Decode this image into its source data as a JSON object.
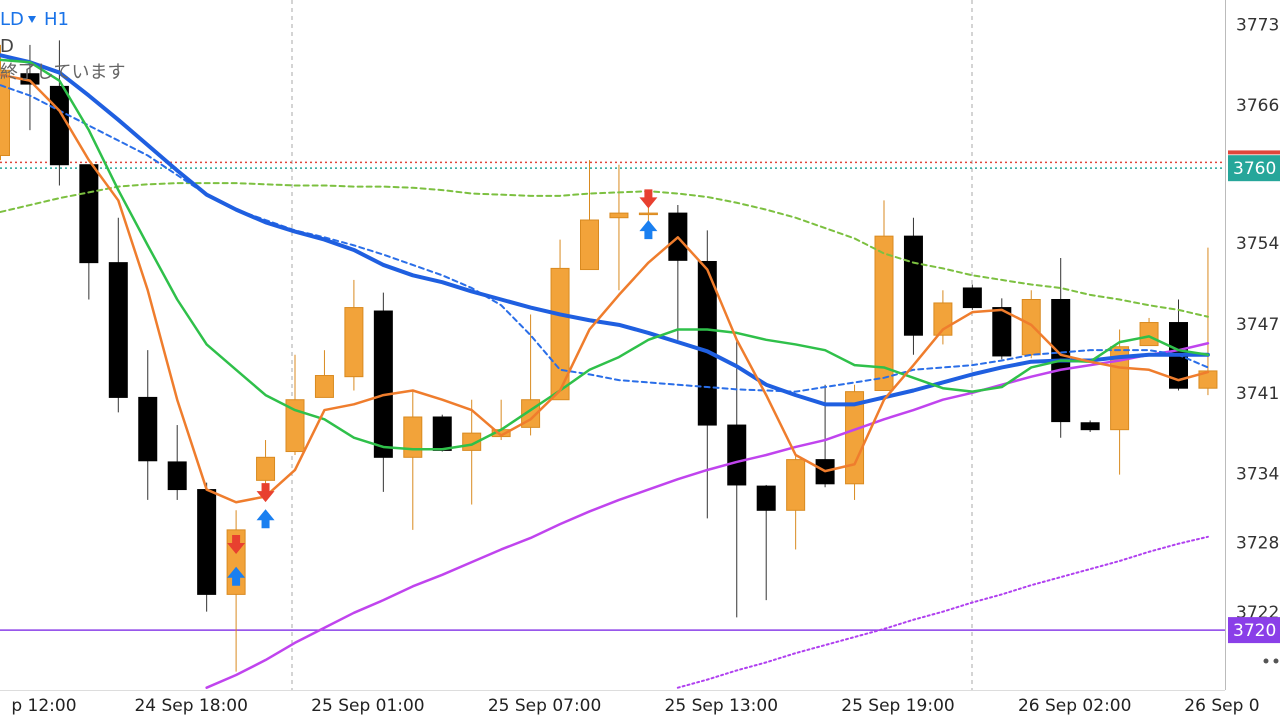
{
  "chart_data": {
    "type": "candlestick",
    "symbol": "LD",
    "timeframe": "H1",
    "subtitle": "D",
    "status": "終了しています",
    "categories": [
      null,
      "p 12:00",
      null,
      null,
      null,
      null,
      "24 Sep 18:00",
      null,
      null,
      null,
      null,
      null,
      "25 Sep 01:00",
      null,
      null,
      null,
      null,
      null,
      "25 Sep 07:00",
      null,
      null,
      null,
      null,
      null,
      "25 Sep 13:00",
      null,
      null,
      null,
      null,
      null,
      "25 Sep 19:00",
      null,
      null,
      null,
      null,
      null,
      "26 Sep 02:00",
      null,
      null,
      null,
      null,
      "26 Sep 0"
    ],
    "open": [
      3761.7,
      3768.8,
      3767.7,
      3760.9,
      3752.4,
      3740.7,
      3735.1,
      3732.7,
      3723.6,
      3733.5,
      3736.0,
      3740.7,
      3742.5,
      3748.2,
      3735.5,
      3739.0,
      3736.1,
      3737.3,
      3738.1,
      3740.5,
      3751.8,
      3756.3,
      3756.6,
      3756.7,
      3752.5,
      3738.3,
      3733.0,
      3730.9,
      3735.3,
      3733.2,
      3741.3,
      3754.7,
      3746.1,
      3750.2,
      3748.5,
      3744.4,
      3749.2,
      3738.5,
      3737.9,
      3745.2,
      3747.2,
      3741.5
    ],
    "high": [
      3771.3,
      3771.3,
      3771.7,
      3760.9,
      3756.3,
      3744.8,
      3738.3,
      3733.3,
      3730.9,
      3737.0,
      3744.4,
      3744.8,
      3750.9,
      3749.8,
      3741.3,
      3739.2,
      3740.5,
      3740.5,
      3747.9,
      3754.4,
      3761.3,
      3760.9,
      3758.3,
      3757.4,
      3755.2,
      3745.7,
      3733.1,
      3735.7,
      3741.8,
      3741.8,
      3757.8,
      3756.3,
      3750.0,
      3750.5,
      3749.3,
      3750.0,
      3752.8,
      3738.7,
      3746.6,
      3747.6,
      3749.2,
      3753.7
    ],
    "low": [
      3761.3,
      3763.9,
      3759.1,
      3749.2,
      3739.4,
      3731.8,
      3731.8,
      3722.1,
      3716.9,
      3732.7,
      3735.7,
      3740.7,
      3741.3,
      3732.5,
      3729.2,
      3736.0,
      3731.4,
      3737.0,
      3737.4,
      3740.5,
      3751.8,
      3750.0,
      3754.8,
      3745.7,
      3730.2,
      3721.6,
      3723.1,
      3727.5,
      3732.9,
      3731.8,
      3741.3,
      3744.4,
      3745.3,
      3748.3,
      3744.0,
      3744.1,
      3737.2,
      3737.7,
      3734.0,
      3745.2,
      3741.3,
      3740.9
    ],
    "close": [
      3769.1,
      3767.9,
      3760.9,
      3752.4,
      3740.7,
      3735.2,
      3732.7,
      3723.6,
      3729.2,
      3735.5,
      3740.5,
      3742.6,
      3748.5,
      3735.5,
      3739.0,
      3736.1,
      3737.6,
      3737.9,
      3740.5,
      3751.9,
      3756.1,
      3756.7,
      3756.7,
      3752.6,
      3738.3,
      3733.1,
      3730.9,
      3735.3,
      3733.2,
      3741.2,
      3754.7,
      3746.1,
      3748.9,
      3748.5,
      3744.3,
      3749.2,
      3738.6,
      3737.9,
      3745.1,
      3747.2,
      3741.5,
      3743.0
    ],
    "bull_color": "#f2a33a",
    "bear_color": "#000000",
    "series": [
      {
        "color": "#7cc040",
        "style": "dashed",
        "width": 2,
        "values": [
          3756.8,
          3757.4,
          3758.0,
          3758.5,
          3759.0,
          3759.2,
          3759.3,
          3759.3,
          3759.3,
          3759.2,
          3759.1,
          3759.1,
          3759.0,
          3759.0,
          3758.9,
          3758.7,
          3758.4,
          3758.3,
          3758.2,
          3758.2,
          3758.4,
          3758.5,
          3758.6,
          3758.4,
          3758.1,
          3757.6,
          3757.0,
          3756.3,
          3755.4,
          3754.5,
          3753.2,
          3752.4,
          3751.9,
          3751.3,
          3750.9,
          3750.5,
          3750.2,
          3749.6,
          3749.2,
          3748.7,
          3748.3,
          3747.7
        ]
      },
      {
        "color": "#c044ee",
        "style": "solid",
        "width": 2.5,
        "values": [
          null,
          null,
          null,
          null,
          null,
          null,
          null,
          3715.5,
          3716.6,
          3717.9,
          3719.4,
          3720.7,
          3722.0,
          3723.1,
          3724.3,
          3725.3,
          3726.4,
          3727.5,
          3728.5,
          3729.7,
          3730.8,
          3731.8,
          3732.7,
          3733.6,
          3734.4,
          3735.1,
          3735.7,
          3736.4,
          3737.0,
          3737.9,
          3738.8,
          3739.6,
          3740.5,
          3741.1,
          3741.8,
          3742.5,
          3743.1,
          3743.5,
          3743.9,
          3744.4,
          3744.8,
          3745.4
        ]
      },
      {
        "color": "#b040f0",
        "style": "dotted",
        "width": 2,
        "values": [
          null,
          null,
          null,
          null,
          null,
          null,
          null,
          null,
          null,
          null,
          null,
          null,
          null,
          null,
          null,
          null,
          null,
          null,
          null,
          null,
          null,
          null,
          null,
          3715.5,
          3716.2,
          3717.0,
          3717.7,
          3718.5,
          3719.2,
          3719.9,
          3720.6,
          3721.4,
          3722.1,
          3722.9,
          3723.6,
          3724.4,
          3725.1,
          3725.8,
          3726.5,
          3727.3,
          3728.0,
          3728.6
        ]
      },
      {
        "color": "#2a6ee8",
        "style": "dashed",
        "width": 2,
        "values": [
          3767.8,
          3766.9,
          3765.6,
          3764.3,
          3763.0,
          3761.7,
          3760.0,
          3758.3,
          3757.0,
          3756.1,
          3755.2,
          3754.6,
          3753.9,
          3753.1,
          3752.2,
          3751.3,
          3750.2,
          3748.7,
          3746.1,
          3743.1,
          3742.7,
          3742.2,
          3742.0,
          3741.8,
          3741.6,
          3741.4,
          3741.3,
          3741.2,
          3741.6,
          3742.0,
          3742.4,
          3743.1,
          3743.3,
          3743.5,
          3743.9,
          3744.4,
          3744.6,
          3744.8,
          3744.8,
          3744.8,
          3744.4,
          3743.3
        ]
      },
      {
        "color": "#1f5fe0",
        "style": "solid",
        "width": 4,
        "values": [
          3770.4,
          3769.8,
          3768.9,
          3766.9,
          3764.8,
          3762.6,
          3760.4,
          3758.3,
          3757.0,
          3755.9,
          3755.1,
          3754.4,
          3753.5,
          3752.2,
          3751.3,
          3750.7,
          3749.9,
          3749.2,
          3748.5,
          3747.9,
          3747.4,
          3747.0,
          3746.3,
          3745.5,
          3744.7,
          3743.4,
          3741.8,
          3740.9,
          3740.1,
          3740.1,
          3740.7,
          3741.3,
          3742.0,
          3742.7,
          3743.3,
          3743.8,
          3743.9,
          3743.9,
          3744.2,
          3744.4,
          3744.4,
          3744.4
        ]
      },
      {
        "color": "#2fc04a",
        "style": "solid",
        "width": 2.5,
        "values": [
          3770.0,
          3769.8,
          3768.2,
          3763.9,
          3758.7,
          3753.9,
          3749.2,
          3745.3,
          3743.1,
          3740.9,
          3739.6,
          3738.8,
          3737.2,
          3736.4,
          3736.2,
          3736.2,
          3736.6,
          3737.9,
          3739.6,
          3741.3,
          3743.1,
          3744.2,
          3745.7,
          3746.6,
          3746.6,
          3746.3,
          3745.7,
          3745.3,
          3744.8,
          3743.5,
          3743.3,
          3742.4,
          3741.5,
          3741.2,
          3741.6,
          3743.3,
          3743.9,
          3743.8,
          3745.5,
          3746.0,
          3744.8,
          3744.4
        ]
      },
      {
        "color": "#ef7d2d",
        "style": "solid",
        "width": 2.5,
        "values": [
          3768.7,
          3768.2,
          3765.6,
          3761.3,
          3757.8,
          3750.0,
          3740.5,
          3732.7,
          3731.6,
          3732.1,
          3734.4,
          3739.6,
          3740.1,
          3740.9,
          3741.3,
          3740.5,
          3739.6,
          3737.4,
          3738.8,
          3741.3,
          3746.6,
          3749.6,
          3752.4,
          3754.6,
          3751.8,
          3745.7,
          3740.9,
          3735.7,
          3734.3,
          3734.9,
          3740.5,
          3743.5,
          3746.6,
          3748.1,
          3748.3,
          3747.0,
          3744.4,
          3743.8,
          3743.3,
          3743.1,
          3742.2,
          3742.9
        ]
      }
    ],
    "sell_arrows": [
      null,
      null,
      null,
      null,
      null,
      null,
      null,
      null,
      3727.8,
      3732.3,
      null,
      null,
      null,
      null,
      null,
      null,
      null,
      null,
      null,
      null,
      null,
      null,
      3757.8,
      null,
      null,
      null,
      null,
      null,
      null,
      null,
      null,
      null,
      null,
      null,
      null,
      null,
      null,
      null,
      null,
      null,
      null,
      null
    ],
    "buy_arrows": [
      null,
      null,
      null,
      null,
      null,
      null,
      null,
      null,
      3725.3,
      3730.3,
      null,
      null,
      null,
      null,
      null,
      null,
      null,
      null,
      null,
      null,
      null,
      null,
      3755.4,
      null,
      null,
      null,
      null,
      null,
      null,
      null,
      null,
      null,
      null,
      null,
      null,
      null,
      null,
      null,
      null,
      null,
      null,
      null
    ],
    "sell_arrow_color": "#e8402f",
    "buy_arrow_color": "#1a7ff0",
    "hlines": [
      {
        "value": 3761.1,
        "color": "#e0463c",
        "style": "dotted"
      },
      {
        "value": 3760.6,
        "color": "#26a69a",
        "style": "dotted",
        "label": "3760"
      },
      {
        "value": 3720.5,
        "color": "#8a3fe8",
        "style": "solid",
        "label": "3720"
      }
    ],
    "ylim": [
      3715.3,
      3775.2
    ],
    "yticks": [
      3773,
      3766,
      3754,
      3747,
      3741,
      3734,
      3728,
      3722
    ]
  }
}
